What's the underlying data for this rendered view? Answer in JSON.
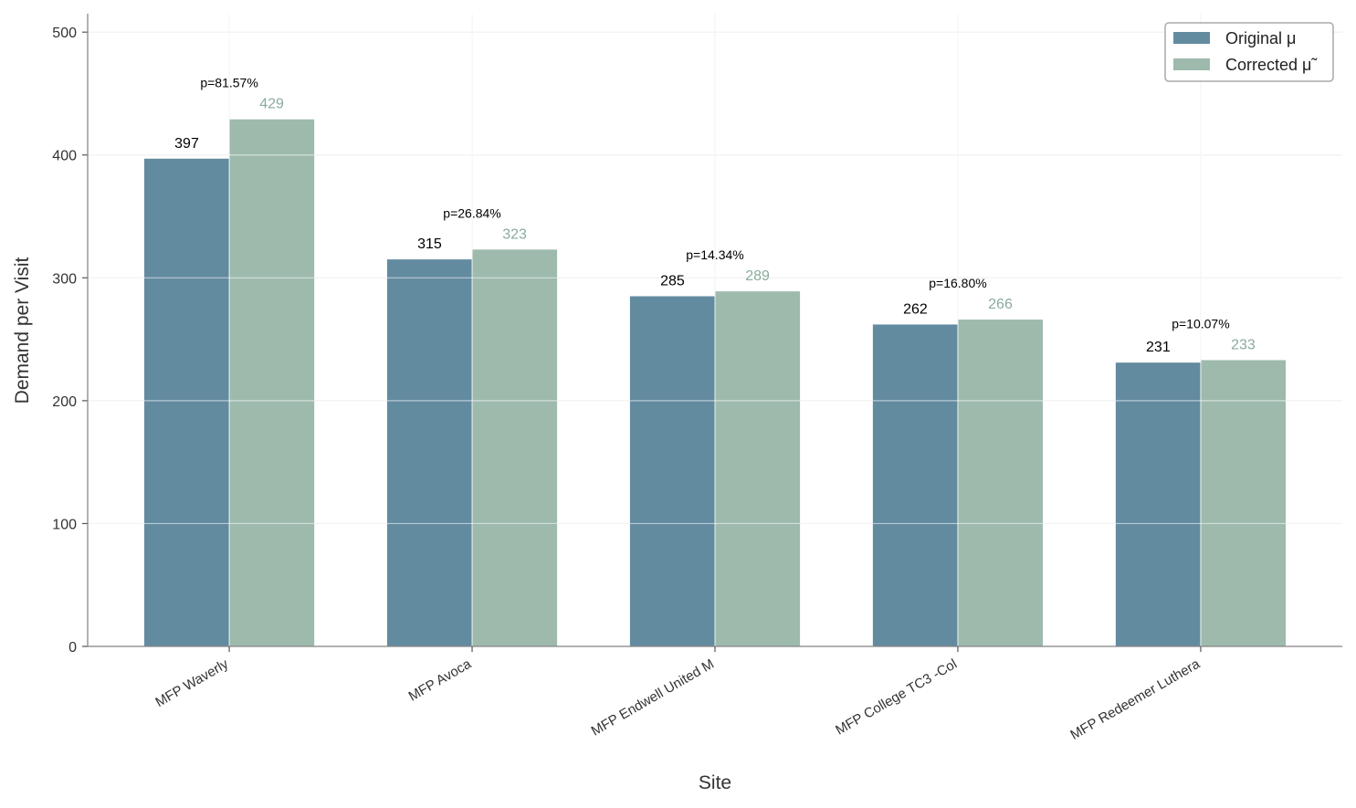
{
  "chart_data": {
    "type": "bar",
    "title": "",
    "xlabel": "Site",
    "ylabel": "Demand per Visit",
    "categories": [
      "MFP Waverly",
      "MFP Avoca",
      "MFP Endwell United M",
      "MFP College TC3 -Col",
      "MFP Redeemer Luthera"
    ],
    "series": [
      {
        "name": "Original μ",
        "values": [
          397,
          315,
          285,
          262,
          231
        ],
        "color": "#638ba0",
        "label_color": "#000000"
      },
      {
        "name": "Corrected μ̃",
        "values": [
          429,
          323,
          289,
          266,
          233
        ],
        "color": "#9dbaad",
        "label_color": "#8aab9c"
      }
    ],
    "value_labels": [
      [
        "397",
        "315",
        "285",
        "262",
        "231"
      ],
      [
        "429",
        "323",
        "289",
        "266",
        "233"
      ]
    ],
    "p_labels": [
      "p=81.57%",
      "p=26.84%",
      "p=14.34%",
      "p=16.80%",
      "p=10.07%"
    ],
    "ylim": [
      0,
      515
    ],
    "yticks": [
      0,
      100,
      200,
      300,
      400,
      500
    ],
    "grid": true,
    "legend_position": "top-right"
  }
}
